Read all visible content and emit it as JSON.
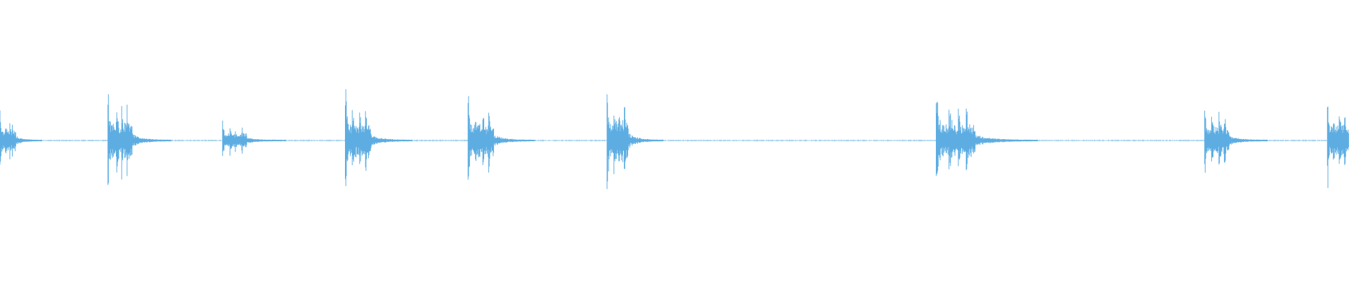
{
  "chart_data": {
    "type": "waveform",
    "color": "#5dade2",
    "xlim": [
      0,
      1
    ],
    "ylim": [
      -1,
      1
    ],
    "bursts": [
      {
        "start": 0.0,
        "duration": 0.012,
        "peak": 0.25
      },
      {
        "start": 0.08,
        "duration": 0.018,
        "peak": 0.41
      },
      {
        "start": 0.165,
        "duration": 0.018,
        "peak": 0.15
      },
      {
        "start": 0.256,
        "duration": 0.019,
        "peak": 0.4
      },
      {
        "start": 0.347,
        "duration": 0.019,
        "peak": 0.36
      },
      {
        "start": 0.45,
        "duration": 0.016,
        "peak": 0.46
      },
      {
        "start": 0.694,
        "duration": 0.029,
        "peak": 0.37
      },
      {
        "start": 0.893,
        "duration": 0.018,
        "peak": 0.31
      },
      {
        "start": 0.984,
        "duration": 0.016,
        "peak": 0.36
      }
    ]
  }
}
